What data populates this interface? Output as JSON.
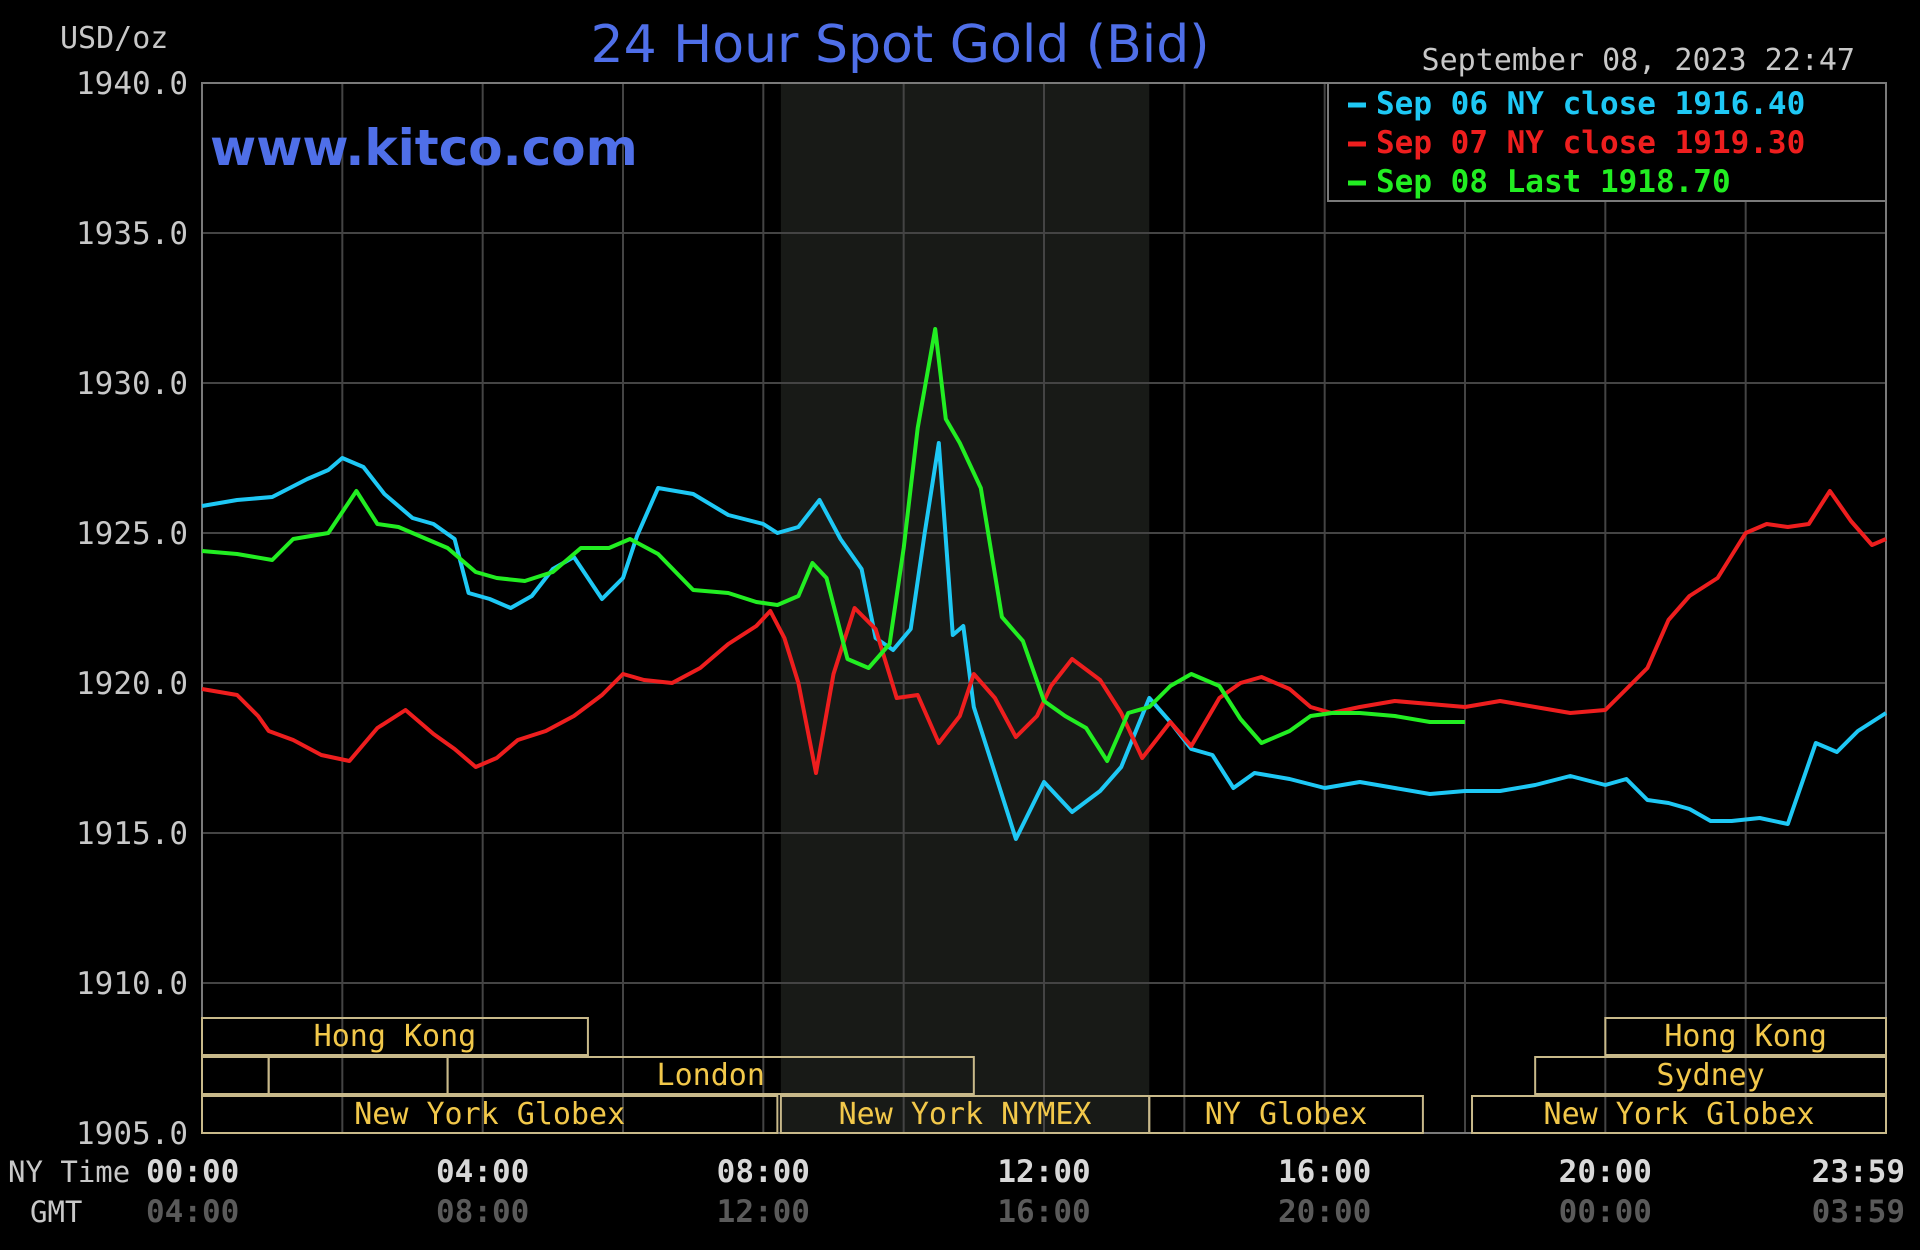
{
  "chart_data": {
    "type": "line",
    "title": "24 Hour Spot Gold (Bid)",
    "ylabel": "USD/oz",
    "watermark": "www.kitco.com",
    "timestamp": "September 08, 2023 22:47",
    "ylim": [
      1905.0,
      1940.0
    ],
    "y_ticks": [
      "1940.0",
      "1935.0",
      "1930.0",
      "1925.0",
      "1920.0",
      "1915.0",
      "1910.0",
      "1905.0"
    ],
    "x_axis": {
      "row_labels": [
        "NY Time",
        "GMT"
      ],
      "ny_ticks": [
        "00:00",
        "04:00",
        "08:00",
        "12:00",
        "16:00",
        "20:00",
        "23:59"
      ],
      "gmt_ticks": [
        "04:00",
        "08:00",
        "12:00",
        "16:00",
        "20:00",
        "00:00",
        "03:59"
      ],
      "tick_hours": [
        0,
        4,
        8,
        12,
        16,
        20,
        24
      ]
    },
    "grid": true,
    "legend_position": "top-right",
    "highlight_hours": [
      8.25,
      13.5
    ],
    "sessions": [
      {
        "label": "Hong Kong",
        "start": 0,
        "end": 5.5,
        "row": 0
      },
      {
        "label": "",
        "start": 0,
        "end": 0.95,
        "row": 1
      },
      {
        "label": "",
        "start": 0.95,
        "end": 3.5,
        "row": 1
      },
      {
        "label": "London",
        "start": 3.5,
        "end": 11.0,
        "row": 1
      },
      {
        "label": "New York Globex",
        "start": 0,
        "end": 8.2,
        "row": 2
      },
      {
        "label": "New York NYMEX",
        "start": 8.25,
        "end": 13.5,
        "row": 2
      },
      {
        "label": "NY Globex",
        "start": 13.5,
        "end": 17.4,
        "row": 2
      },
      {
        "label": "New York Globex",
        "start": 18.1,
        "end": 24,
        "row": 2
      },
      {
        "label": "Sydney",
        "start": 19.0,
        "end": 24,
        "row": 1
      },
      {
        "label": "Hong Kong",
        "start": 20.0,
        "end": 24,
        "row": 0
      }
    ],
    "series": [
      {
        "name": "Sep 06 NY close 1916.40",
        "color": "#1ec8f5",
        "x": [
          0,
          0.5,
          1,
          1.5,
          1.8,
          2.0,
          2.3,
          2.6,
          3.0,
          3.3,
          3.6,
          3.8,
          4.1,
          4.4,
          4.7,
          5.0,
          5.3,
          5.7,
          6.0,
          6.2,
          6.5,
          7.0,
          7.5,
          8.0,
          8.2,
          8.5,
          8.8,
          9.1,
          9.4,
          9.6,
          9.85,
          10.1,
          10.3,
          10.5,
          10.7,
          10.85,
          11.0,
          11.3,
          11.6,
          12.0,
          12.4,
          12.8,
          13.1,
          13.5,
          13.8,
          14.1,
          14.4,
          14.7,
          15.0,
          15.5,
          16.0,
          16.5,
          17.0,
          17.5,
          18.0,
          18.5,
          19.0,
          19.5,
          20.0,
          20.3,
          20.6,
          20.9,
          21.2,
          21.5,
          21.8,
          22.2,
          22.6,
          23.0,
          23.3,
          23.6,
          24.0
        ],
        "y": [
          1925.9,
          1926.1,
          1926.2,
          1926.8,
          1927.1,
          1927.5,
          1927.2,
          1926.3,
          1925.5,
          1925.3,
          1924.8,
          1923.0,
          1922.8,
          1922.5,
          1922.9,
          1923.8,
          1924.2,
          1922.8,
          1923.5,
          1924.9,
          1926.5,
          1926.3,
          1925.6,
          1925.3,
          1925.0,
          1925.2,
          1926.1,
          1924.8,
          1923.8,
          1921.5,
          1921.1,
          1921.8,
          1925.0,
          1928.0,
          1921.6,
          1921.9,
          1919.2,
          1917.0,
          1914.8,
          1916.7,
          1915.7,
          1916.4,
          1917.2,
          1919.5,
          1918.7,
          1917.8,
          1917.6,
          1916.5,
          1917.0,
          1916.8,
          1916.5,
          1916.7,
          1916.5,
          1916.3,
          1916.4,
          1916.4,
          1916.6,
          1916.9,
          1916.6,
          1916.8,
          1916.1,
          1916.0,
          1915.8,
          1915.4,
          1915.4,
          1915.5,
          1915.3,
          1918.0,
          1917.7,
          1918.4,
          1919.0
        ]
      },
      {
        "name": "Sep 07 NY close 1919.30",
        "color": "#ee1e1e",
        "x": [
          0,
          0.5,
          0.8,
          0.95,
          1.3,
          1.7,
          2.1,
          2.5,
          2.9,
          3.3,
          3.6,
          3.9,
          4.2,
          4.5,
          4.9,
          5.3,
          5.7,
          6.0,
          6.3,
          6.7,
          7.1,
          7.5,
          7.9,
          8.1,
          8.3,
          8.5,
          8.75,
          9.0,
          9.3,
          9.6,
          9.9,
          10.2,
          10.5,
          10.8,
          11.0,
          11.3,
          11.6,
          11.9,
          12.1,
          12.4,
          12.8,
          13.1,
          13.4,
          13.8,
          14.1,
          14.5,
          14.8,
          15.1,
          15.5,
          15.8,
          16.1,
          16.5,
          17.0,
          17.5,
          18.0,
          18.5,
          19.0,
          19.5,
          20.0,
          20.3,
          20.6,
          20.9,
          21.2,
          21.6,
          22.0,
          22.3,
          22.6,
          22.9,
          23.2,
          23.5,
          23.8,
          24.0
        ],
        "y": [
          1919.8,
          1919.6,
          1918.9,
          1918.4,
          1918.1,
          1917.6,
          1917.4,
          1918.5,
          1919.1,
          1918.3,
          1917.8,
          1917.2,
          1917.5,
          1918.1,
          1918.4,
          1918.9,
          1919.6,
          1920.3,
          1920.1,
          1920.0,
          1920.5,
          1921.3,
          1921.9,
          1922.4,
          1921.5,
          1920.0,
          1917.0,
          1920.3,
          1922.5,
          1921.8,
          1919.5,
          1919.6,
          1918.0,
          1918.9,
          1920.3,
          1919.5,
          1918.2,
          1918.9,
          1919.9,
          1920.8,
          1920.1,
          1919.0,
          1917.5,
          1918.7,
          1917.9,
          1919.5,
          1920.0,
          1920.2,
          1919.8,
          1919.2,
          1919.0,
          1919.2,
          1919.4,
          1919.3,
          1919.2,
          1919.4,
          1919.2,
          1919.0,
          1919.1,
          1919.8,
          1920.5,
          1922.1,
          1922.9,
          1923.5,
          1925.0,
          1925.3,
          1925.2,
          1925.3,
          1926.4,
          1925.4,
          1924.6,
          1924.8
        ]
      },
      {
        "name": "Sep 08 Last 1918.70",
        "color": "#22ee22",
        "x": [
          0,
          0.5,
          1.0,
          1.3,
          1.8,
          2.2,
          2.5,
          2.8,
          3.1,
          3.5,
          3.9,
          4.2,
          4.6,
          5.0,
          5.4,
          5.8,
          6.1,
          6.5,
          7.0,
          7.5,
          7.9,
          8.2,
          8.5,
          8.7,
          8.9,
          9.2,
          9.5,
          9.8,
          10.0,
          10.2,
          10.45,
          10.6,
          10.8,
          11.1,
          11.4,
          11.7,
          12.0,
          12.3,
          12.6,
          12.9,
          13.2,
          13.5,
          13.8,
          14.1,
          14.5,
          14.8,
          15.1,
          15.5,
          15.8,
          16.1,
          16.5,
          17.0,
          17.5,
          18.0
        ],
        "y": [
          1924.4,
          1924.3,
          1924.1,
          1924.8,
          1925.0,
          1926.4,
          1925.3,
          1925.2,
          1924.9,
          1924.5,
          1923.7,
          1923.5,
          1923.4,
          1923.7,
          1924.5,
          1924.5,
          1924.8,
          1924.3,
          1923.1,
          1923.0,
          1922.7,
          1922.6,
          1922.9,
          1924.0,
          1923.5,
          1920.8,
          1920.5,
          1921.3,
          1924.5,
          1928.5,
          1931.8,
          1928.8,
          1928.0,
          1926.5,
          1922.2,
          1921.4,
          1919.4,
          1918.9,
          1918.5,
          1917.4,
          1919.0,
          1919.2,
          1919.9,
          1920.3,
          1919.9,
          1918.8,
          1918.0,
          1918.4,
          1918.9,
          1919.0,
          1919.0,
          1918.9,
          1918.7,
          1918.7
        ]
      }
    ]
  }
}
